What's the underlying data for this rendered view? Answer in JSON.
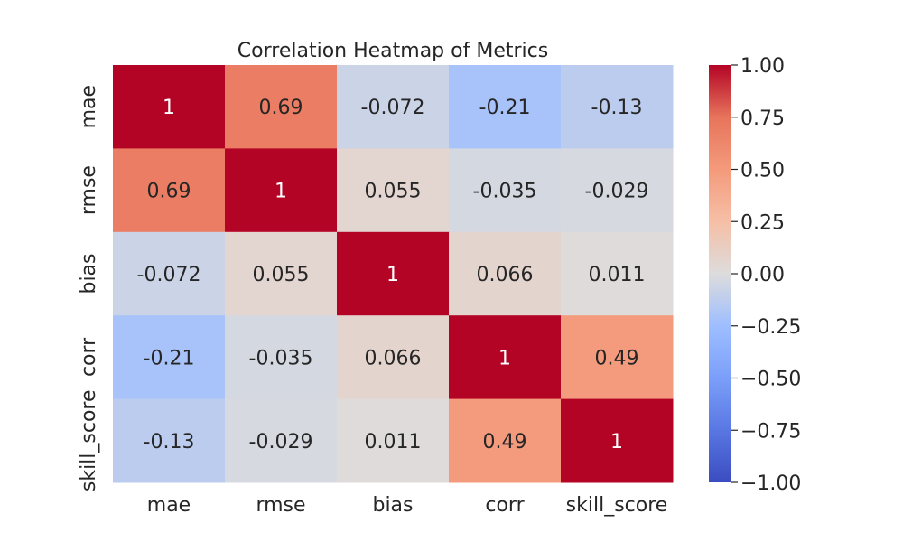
{
  "chart_data": {
    "type": "heatmap",
    "title": "Correlation Heatmap of Metrics",
    "x_labels": [
      "mae",
      "rmse",
      "bias",
      "corr",
      "skill_score"
    ],
    "y_labels": [
      "mae",
      "rmse",
      "bias",
      "corr",
      "skill_score"
    ],
    "values": [
      [
        1,
        0.69,
        -0.072,
        -0.21,
        -0.13
      ],
      [
        0.69,
        1,
        0.055,
        -0.035,
        -0.029
      ],
      [
        -0.072,
        0.055,
        1,
        0.066,
        0.011
      ],
      [
        -0.21,
        -0.035,
        0.066,
        1,
        0.49
      ],
      [
        -0.13,
        -0.029,
        0.011,
        0.49,
        1
      ]
    ],
    "annotations": [
      [
        "1",
        "0.69",
        "-0.072",
        "-0.21",
        "-0.13"
      ],
      [
        "0.69",
        "1",
        "0.055",
        "-0.035",
        "-0.029"
      ],
      [
        "-0.072",
        "0.055",
        "1",
        "0.066",
        "0.011"
      ],
      [
        "-0.21",
        "-0.035",
        "0.066",
        "1",
        "0.49"
      ],
      [
        "-0.13",
        "-0.029",
        "0.011",
        "0.49",
        "1"
      ]
    ],
    "colormap": "coolwarm",
    "vmin": -1.0,
    "vmax": 1.0,
    "colorbar": {
      "ticks": [
        1.0,
        0.75,
        0.5,
        0.25,
        0.0,
        -0.25,
        -0.5,
        -0.75,
        -1.0
      ],
      "tick_labels": [
        "1.00",
        "0.75",
        "0.50",
        "0.25",
        "0.00",
        "−0.25",
        "−0.50",
        "−0.75",
        "−1.00"
      ]
    }
  }
}
